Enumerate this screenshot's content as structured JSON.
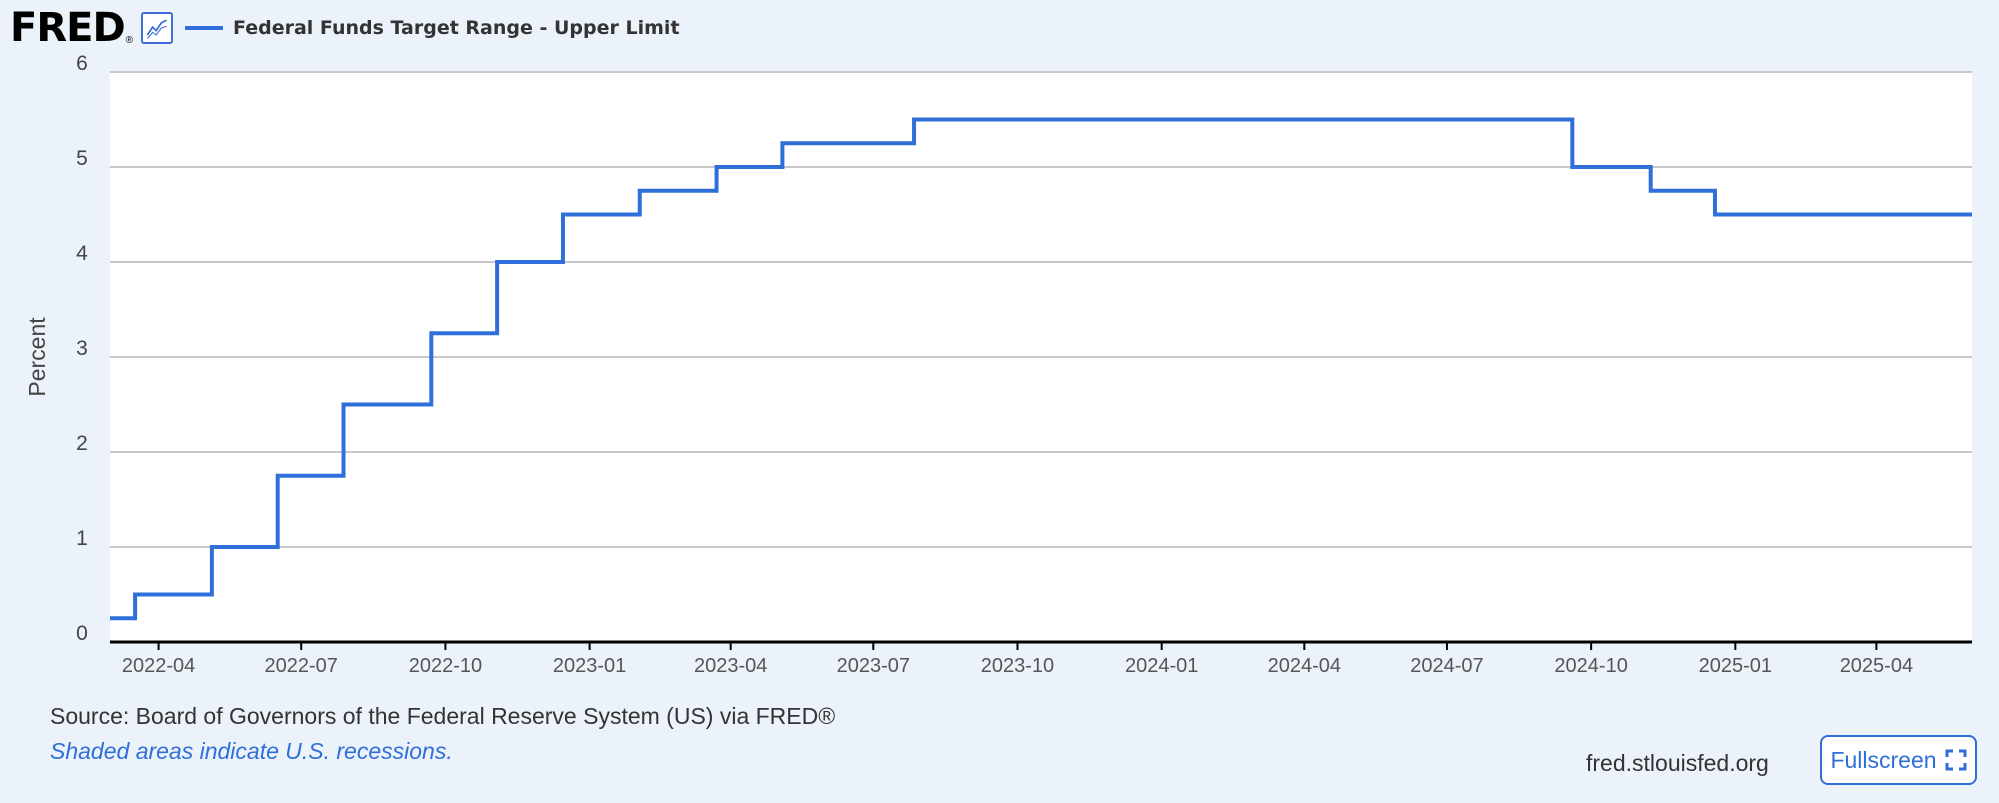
{
  "brand": {
    "logo_text": "FRED",
    "logo_mark": "®"
  },
  "legend": {
    "series_label": "Federal Funds Target Range - Upper Limit",
    "color": "#2f6fd9"
  },
  "footer": {
    "source": "Source: Board of Governors of the Federal Reserve System (US) via FRED®",
    "note": "Shaded areas indicate U.S. recessions.",
    "site": "fred.stlouisfed.org",
    "fullscreen_label": "Fullscreen"
  },
  "chart_data": {
    "type": "line",
    "step": true,
    "title": "",
    "xlabel": "",
    "ylabel": "Percent",
    "ylim": [
      0,
      6
    ],
    "yticks": [
      0,
      1,
      2,
      3,
      4,
      5,
      6
    ],
    "xlim": [
      "2022-03-01",
      "2025-06-01"
    ],
    "xticks": [
      "2022-04",
      "2022-07",
      "2022-10",
      "2023-01",
      "2023-04",
      "2023-07",
      "2023-10",
      "2024-01",
      "2024-04",
      "2024-07",
      "2024-10",
      "2025-01",
      "2025-04"
    ],
    "grid": true,
    "legend_position": "top-left",
    "series": [
      {
        "name": "Federal Funds Target Range - Upper Limit",
        "color": "#2f6fd9",
        "points": [
          {
            "x": "2022-03-01",
            "y": 0.25
          },
          {
            "x": "2022-03-17",
            "y": 0.5
          },
          {
            "x": "2022-05-05",
            "y": 1.0
          },
          {
            "x": "2022-06-16",
            "y": 1.75
          },
          {
            "x": "2022-07-28",
            "y": 2.5
          },
          {
            "x": "2022-09-22",
            "y": 3.25
          },
          {
            "x": "2022-11-03",
            "y": 4.0
          },
          {
            "x": "2022-12-15",
            "y": 4.5
          },
          {
            "x": "2023-02-02",
            "y": 4.75
          },
          {
            "x": "2023-03-23",
            "y": 5.0
          },
          {
            "x": "2023-05-04",
            "y": 5.25
          },
          {
            "x": "2023-07-27",
            "y": 5.5
          },
          {
            "x": "2024-09-19",
            "y": 5.0
          },
          {
            "x": "2024-11-08",
            "y": 4.75
          },
          {
            "x": "2024-12-19",
            "y": 4.5
          },
          {
            "x": "2025-06-01",
            "y": 4.5
          }
        ]
      }
    ]
  }
}
